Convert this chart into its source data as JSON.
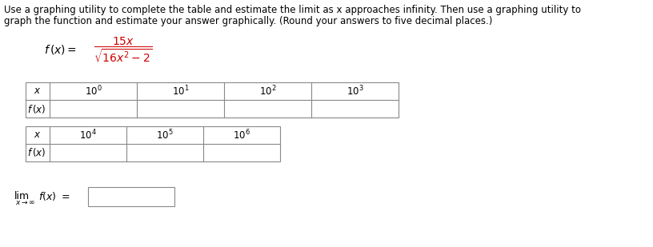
{
  "title_line1": "Use a graphing utility to complete the table and estimate the limit as x approaches infinity. Then use a graphing utility to",
  "title_line2": "graph the function and estimate your answer graphically. (Round your answers to five decimal places.)",
  "table1_x_labels": [
    "10^{0}",
    "10^{1}",
    "10^{2}",
    "10^{3}"
  ],
  "table2_x_labels": [
    "10^{4}",
    "10^{5}",
    "10^{6}"
  ],
  "bg_color": "#ffffff",
  "text_color": "#000000",
  "red_color": "#cc0000",
  "table_line_color": "#888888",
  "font_size_body": 8.5,
  "font_size_formula": 10,
  "font_size_table": 8.5,
  "fig_width": 8.16,
  "fig_height": 3.09,
  "dpi": 100
}
